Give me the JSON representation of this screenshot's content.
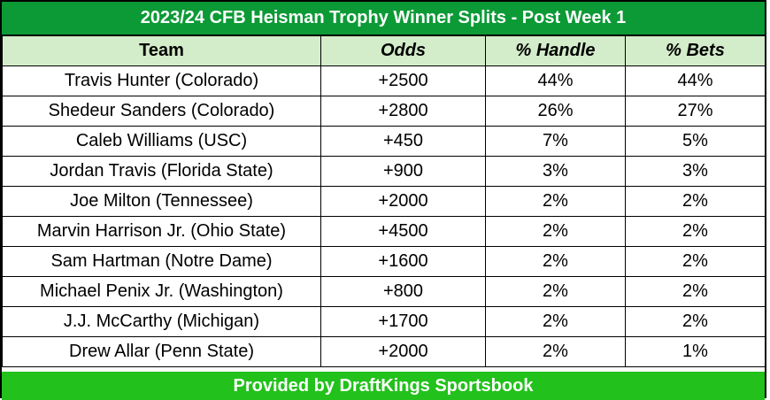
{
  "title": "2023/24 CFB Heisman Trophy Winner Splits - Post Week 1",
  "columns": [
    "Team",
    "Odds",
    "% Handle",
    "% Bets"
  ],
  "rows": [
    [
      "Travis Hunter (Colorado)",
      "+2500",
      "44%",
      "44%"
    ],
    [
      "Shedeur Sanders (Colorado)",
      "+2800",
      "26%",
      "27%"
    ],
    [
      "Caleb Williams (USC)",
      "+450",
      "7%",
      "5%"
    ],
    [
      "Jordan Travis (Florida State)",
      "+900",
      "3%",
      "3%"
    ],
    [
      "Joe Milton (Tennessee)",
      "+2000",
      "2%",
      "2%"
    ],
    [
      "Marvin Harrison Jr. (Ohio State)",
      "+4500",
      "2%",
      "2%"
    ],
    [
      "Sam Hartman (Notre Dame)",
      "+1600",
      "2%",
      "2%"
    ],
    [
      "Michael Penix Jr. (Washington)",
      "+800",
      "2%",
      "2%"
    ],
    [
      "J.J. McCarthy (Michigan)",
      "+1700",
      "2%",
      "2%"
    ],
    [
      "Drew Allar (Penn State)",
      "+2000",
      "2%",
      "1%"
    ]
  ],
  "footer": "Provided by DraftKings Sportsbook",
  "colors": {
    "title_bg": "#0b9a35",
    "header_bg": "#d3ecc9",
    "footer_bg": "#22c11b"
  }
}
